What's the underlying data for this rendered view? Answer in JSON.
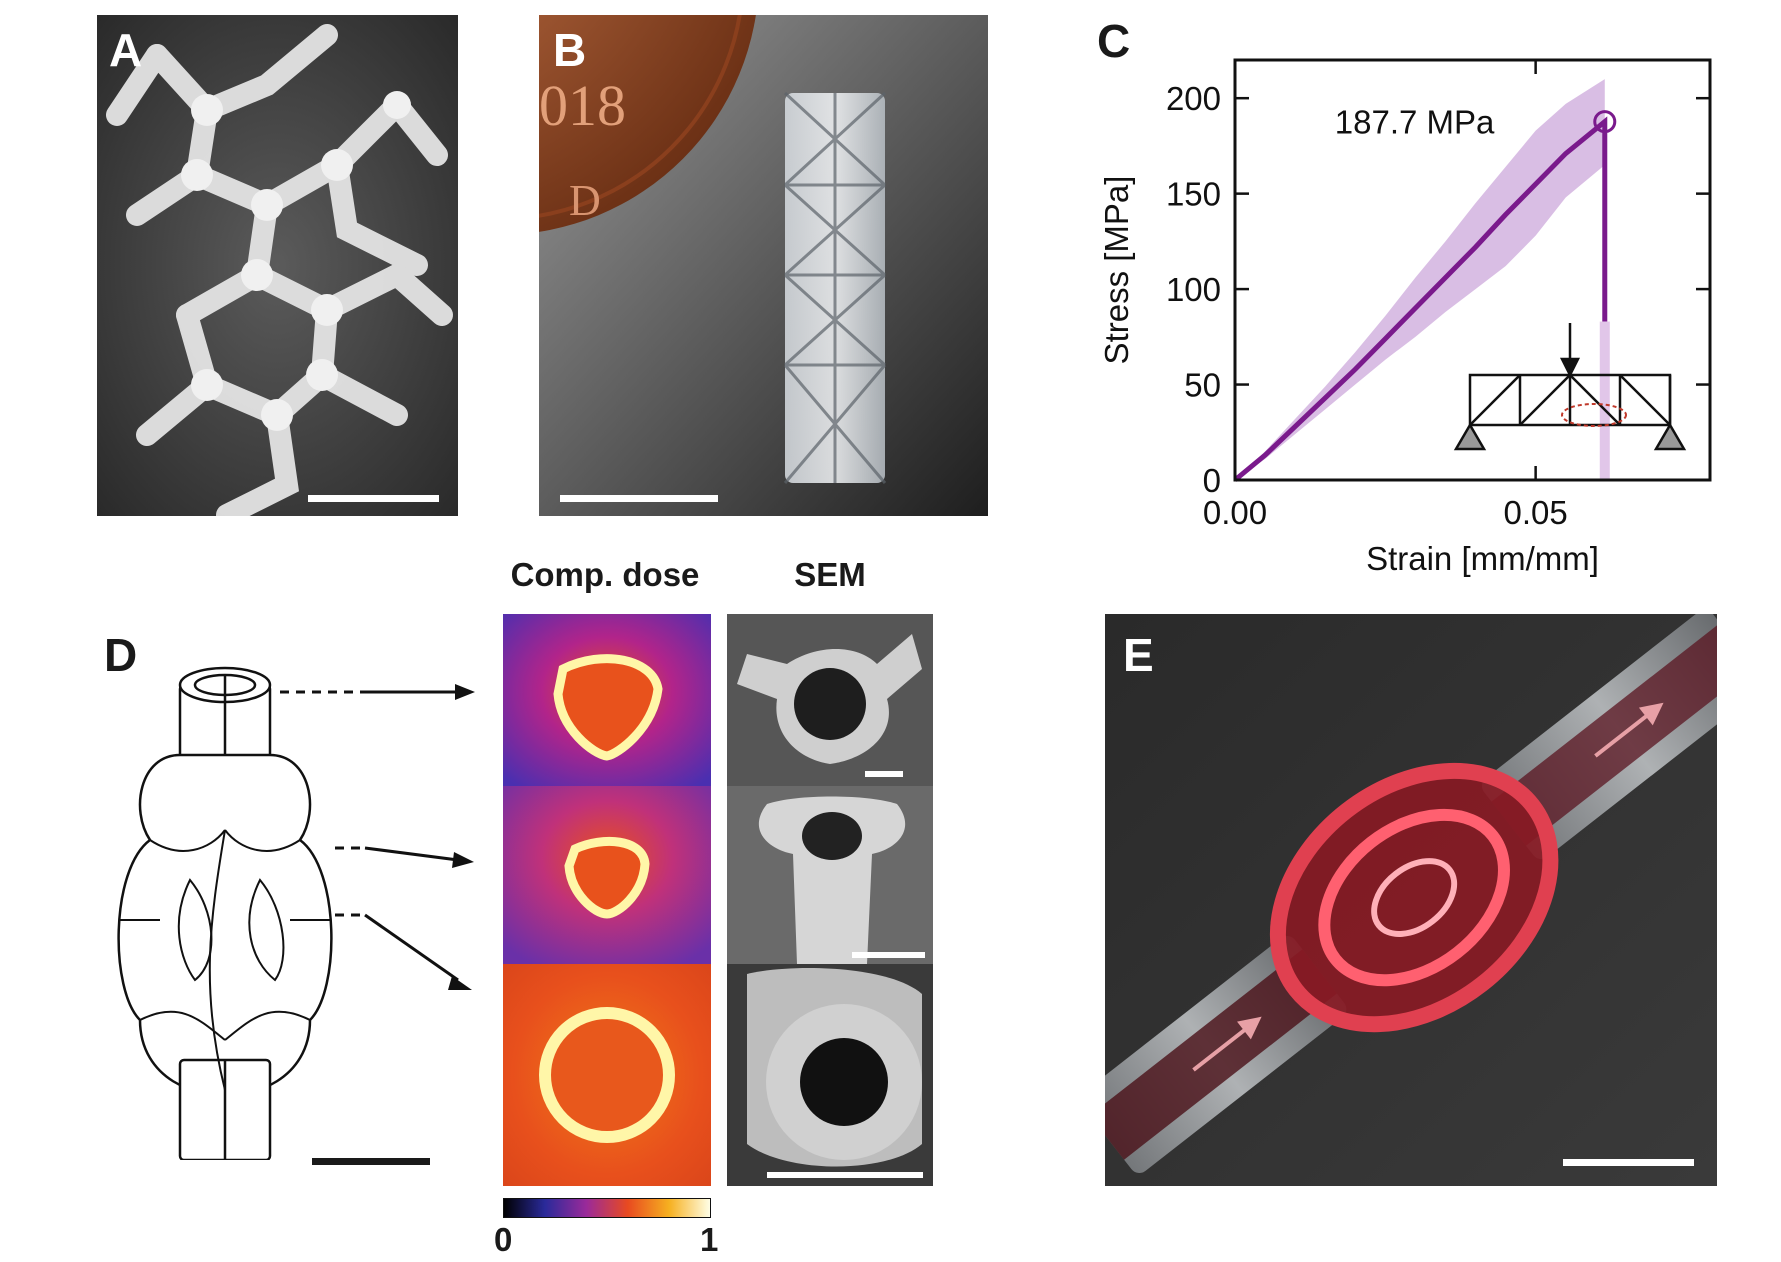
{
  "panels": {
    "a": {
      "letter": "A"
    },
    "b": {
      "letter": "B",
      "coin_text": "018",
      "coin_mint": "D"
    },
    "c": {
      "letter": "C",
      "annotation": "187.7 MPa"
    },
    "d": {
      "letter": "D",
      "headers": {
        "dose": "Comp. dose",
        "sem": "SEM"
      },
      "colorbar": {
        "min": "0",
        "max": "1"
      }
    },
    "e": {
      "letter": "E"
    }
  },
  "colors": {
    "curve": "#7a1a8c",
    "band": "#c9a3d9",
    "break": "#d9b8e3",
    "ellipse": "#c0392b"
  },
  "chart_data": {
    "type": "line",
    "xlabel": "Strain [mm/mm]",
    "ylabel": "Stress [MPa]",
    "xlim": [
      0,
      0.079
    ],
    "ylim": [
      0,
      220
    ],
    "xticks": [
      0.0,
      0.05
    ],
    "xtick_labels": [
      "0.00",
      "0.05"
    ],
    "yticks": [
      0,
      50,
      100,
      150,
      200
    ],
    "ytick_labels": [
      "0",
      "50",
      "100",
      "150",
      "200"
    ],
    "series": [
      {
        "x": [
          0.0,
          0.005,
          0.01,
          0.015,
          0.02,
          0.025,
          0.03,
          0.035,
          0.04,
          0.045,
          0.05,
          0.055,
          0.0615,
          0.0615
        ],
        "y": [
          0,
          13,
          28,
          43,
          58,
          74,
          90,
          106,
          122,
          139,
          155,
          171,
          187.7,
          83
        ],
        "band_upper": [
          0,
          15,
          32,
          49,
          67,
          86,
          106,
          125,
          145,
          164,
          183,
          197,
          210
        ],
        "band_lower": [
          0,
          11,
          24,
          37,
          50,
          63,
          75,
          88,
          100,
          112,
          128,
          148,
          165
        ]
      }
    ],
    "peak": {
      "x": 0.0615,
      "y": 187.7,
      "label": "187.7 MPa"
    },
    "grid": false
  }
}
